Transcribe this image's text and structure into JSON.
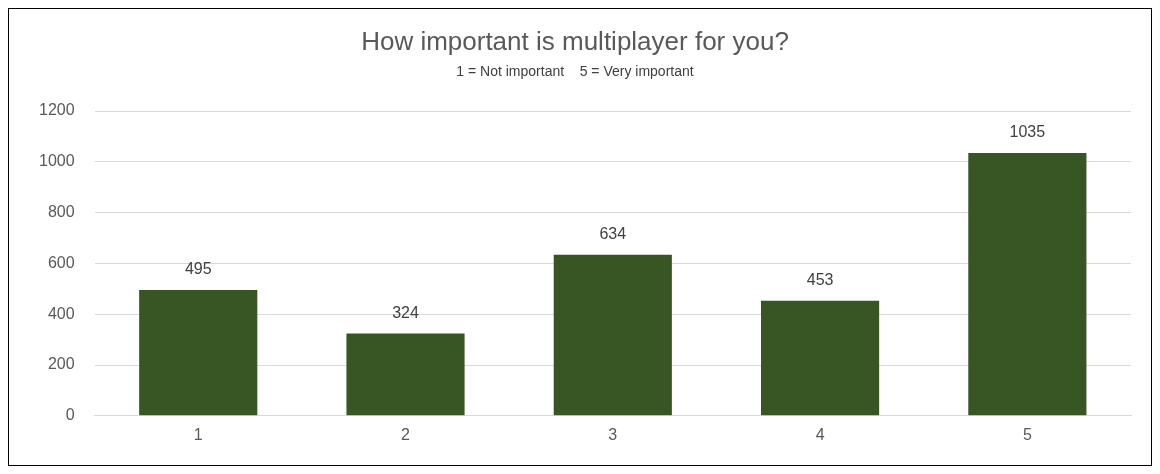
{
  "chart_data": {
    "type": "bar",
    "title": "How important is multiplayer for you?",
    "subtitle": "1 = Not important    5 = Very important",
    "categories": [
      "1",
      "2",
      "3",
      "4",
      "5"
    ],
    "values": [
      495,
      324,
      634,
      453,
      1035
    ],
    "color": "#375623",
    "ylim": [
      0,
      1200
    ],
    "yticks": [
      0,
      200,
      400,
      600,
      800,
      1000,
      1200
    ],
    "grid": "y",
    "data_labels": true
  }
}
